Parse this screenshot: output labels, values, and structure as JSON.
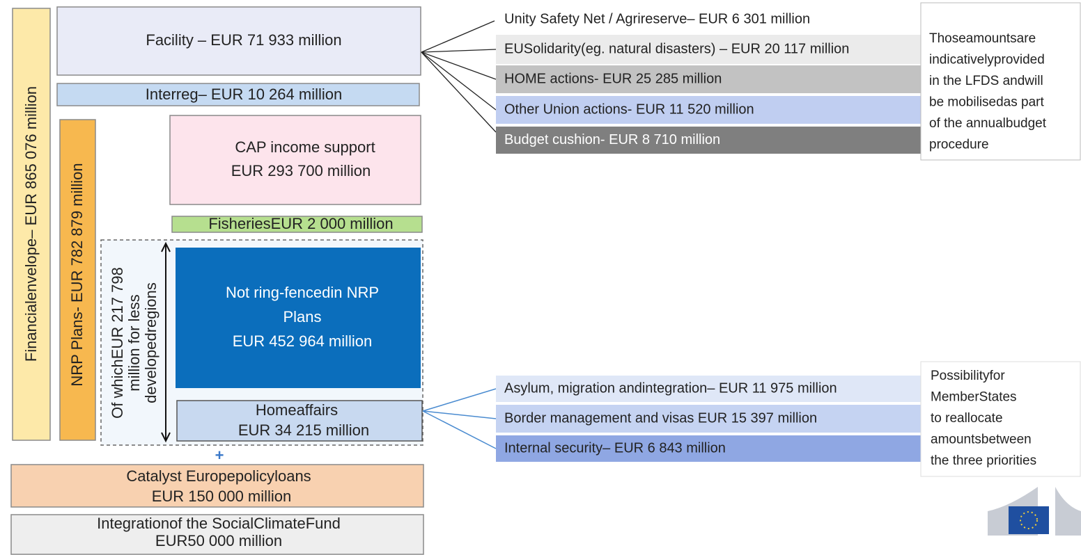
{
  "left_column": {
    "financial_envelope": "Financialenvelope– EUR 865 076 million",
    "facility": "Facility – EUR 71 933 million",
    "interreg": "Interreg– EUR 10 264 million",
    "nrp_plans": "NRP Plans- EUR 782 879 million",
    "cap_income_support": [
      "CAP income support",
      "EUR 293 700 million"
    ],
    "fisheries": "FisheriesEUR 2 000 million",
    "less_developed_regions": [
      "Of whichEUR 217 798",
      "million for less",
      "developedregions"
    ],
    "not_ring_fenced": [
      "Not ring-fencedin NRP",
      "Plans",
      "EUR 452 964 million"
    ],
    "home_affairs": [
      "Homeaffairs",
      "EUR 34 215 million"
    ],
    "plus": "+",
    "catalyst_europe": [
      "Catalyst Europepolicyloans",
      "EUR 150 000 million"
    ],
    "social_climate_fund": [
      "Integrationof the SocialClimateFund",
      "EUR50 000 million"
    ]
  },
  "facility_breakdown": {
    "items": [
      "Unity Safety Net / Agrireserve– EUR 6 301 million",
      "EUSolidarity(eg. natural disasters) – EUR 20 117 million",
      "HOME actions- EUR 25 285 million",
      "Other Union actions- EUR 11 520  million",
      "Budget cushion- EUR 8 710 million"
    ],
    "note": [
      "Thoseamountsare",
      "indicativelyprovided",
      "in the LFDS andwill",
      "be mobilisedas part",
      "of the annualbudget",
      "procedure"
    ]
  },
  "home_affairs_breakdown": {
    "items": [
      "Asylum, migration andintegration– EUR 11 975 million",
      "Border management and visas EUR 15 397 million",
      "Internal security– EUR 6 843 million"
    ],
    "note": [
      "Possibilityfor",
      "MemberStates",
      "to reallocate",
      "amountsbetween",
      "the three priorities"
    ]
  }
}
